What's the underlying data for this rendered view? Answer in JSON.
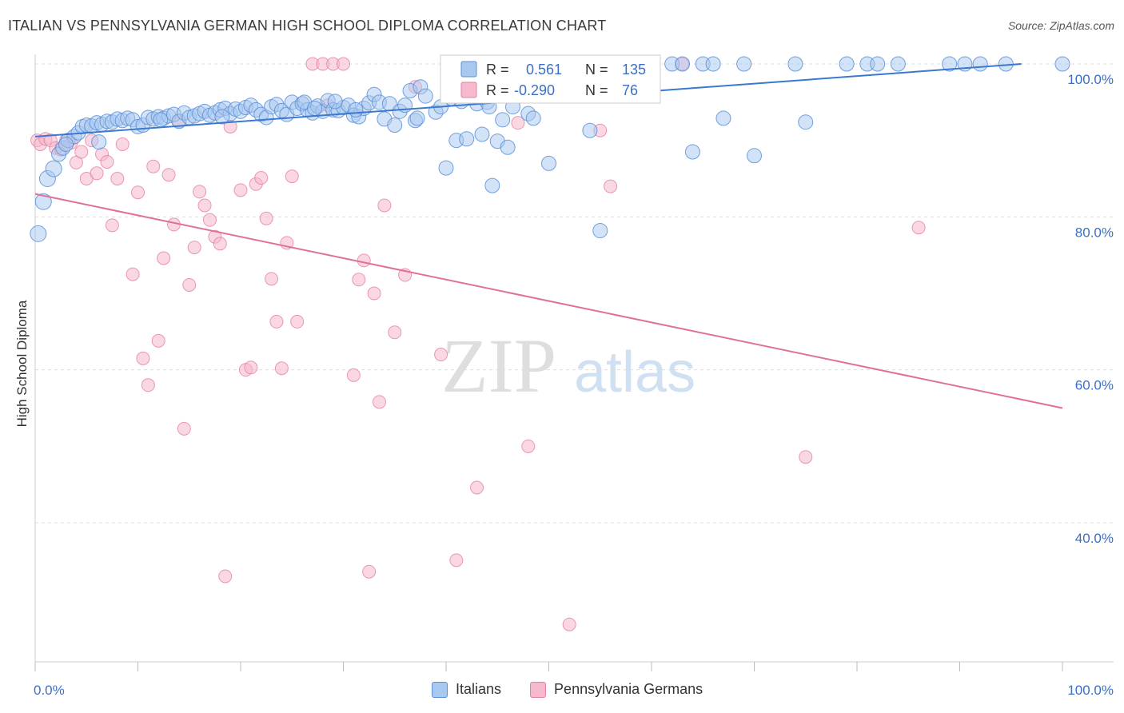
{
  "title": "ITALIAN VS PENNSYLVANIA GERMAN HIGH SCHOOL DIPLOMA CORRELATION CHART",
  "source": "Source: ZipAtlas.com",
  "watermark": {
    "zip": "ZIP",
    "atlas": "atlas"
  },
  "colors": {
    "italians_fill": "#a8c8f0",
    "italians_stroke": "#5b8fd8",
    "italians_line": "#3b78d0",
    "pa_fill": "#f6b8cc",
    "pa_stroke": "#e67fa3",
    "pa_line": "#e0709a",
    "grid": "#dddddd",
    "tick_label": "#3b6fc6"
  },
  "legend": {
    "r_label": "R =",
    "n_label": "N =",
    "italians_r": "0.561",
    "italians_n": "135",
    "pa_r": "-0.290",
    "pa_n": "76"
  },
  "bottom_legend": {
    "italians": "Italians",
    "pa": "Pennsylvania Germans"
  },
  "chart_data": {
    "type": "scatter",
    "title": "ITALIAN VS PENNSYLVANIA GERMAN HIGH SCHOOL DIPLOMA CORRELATION CHART",
    "xlabel": "",
    "ylabel": "High School Diploma",
    "x_tick_labels": [
      "0.0%",
      "100.0%"
    ],
    "y_tick_labels": [
      "40.0%",
      "60.0%",
      "80.0%",
      "100.0%"
    ],
    "xlim": [
      0,
      100
    ],
    "ylim": [
      20,
      102
    ],
    "grid": true,
    "legend_position": "top-center",
    "series": [
      {
        "name": "Italians",
        "r": 0.561,
        "n": 135,
        "trend": {
          "x": [
            0,
            96
          ],
          "y": [
            90.5,
            100
          ]
        },
        "points": [
          [
            0.3,
            77.8
          ],
          [
            0.8,
            82
          ],
          [
            1.2,
            85
          ],
          [
            1.8,
            86.3
          ],
          [
            2.3,
            88.2
          ],
          [
            2.7,
            89
          ],
          [
            3.2,
            90
          ],
          [
            3.8,
            90.5
          ],
          [
            4.2,
            91
          ],
          [
            4.6,
            91.8
          ],
          [
            5.0,
            92.0
          ],
          [
            5.5,
            91.9
          ],
          [
            6.0,
            92.3
          ],
          [
            6.5,
            92.1
          ],
          [
            7.0,
            92.5
          ],
          [
            7.5,
            92.4
          ],
          [
            8.0,
            92.8
          ],
          [
            8.5,
            92.6
          ],
          [
            9.0,
            92.9
          ],
          [
            9.5,
            92.7
          ],
          [
            10.0,
            91.8
          ],
          [
            10.5,
            92.0
          ],
          [
            11.0,
            93.0
          ],
          [
            11.5,
            92.8
          ],
          [
            12.0,
            93.1
          ],
          [
            12.5,
            92.9
          ],
          [
            13.0,
            93.2
          ],
          [
            13.5,
            93.4
          ],
          [
            14.0,
            92.5
          ],
          [
            14.5,
            93.6
          ],
          [
            15.0,
            93.0
          ],
          [
            15.5,
            93.2
          ],
          [
            16.0,
            93.5
          ],
          [
            16.5,
            93.8
          ],
          [
            17.0,
            93.3
          ],
          [
            17.5,
            93.6
          ],
          [
            18.0,
            94.0
          ],
          [
            18.5,
            94.2
          ],
          [
            19.0,
            93.5
          ],
          [
            19.5,
            94.1
          ],
          [
            20.0,
            93.8
          ],
          [
            20.5,
            94.3
          ],
          [
            21.0,
            94.6
          ],
          [
            21.5,
            94.0
          ],
          [
            22.0,
            93.4
          ],
          [
            22.5,
            93.0
          ],
          [
            23.0,
            94.4
          ],
          [
            23.5,
            94.7
          ],
          [
            24.0,
            93.9
          ],
          [
            24.5,
            93.4
          ],
          [
            25.0,
            95.0
          ],
          [
            25.5,
            94.2
          ],
          [
            26.0,
            94.8
          ],
          [
            26.5,
            94.0
          ],
          [
            27.0,
            93.6
          ],
          [
            27.5,
            94.5
          ],
          [
            28.0,
            93.8
          ],
          [
            28.5,
            95.2
          ],
          [
            29.0,
            94.0
          ],
          [
            29.5,
            93.9
          ],
          [
            30.0,
            94.3
          ],
          [
            30.5,
            94.6
          ],
          [
            31.0,
            93.3
          ],
          [
            31.5,
            93.1
          ],
          [
            32.0,
            94.2
          ],
          [
            32.5,
            94.9
          ],
          [
            33.0,
            96.0
          ],
          [
            33.5,
            95.0
          ],
          [
            34.0,
            92.8
          ],
          [
            34.5,
            94.8
          ],
          [
            35.0,
            92.0
          ],
          [
            35.5,
            93.8
          ],
          [
            36.0,
            94.6
          ],
          [
            36.5,
            96.5
          ],
          [
            37.0,
            92.6
          ],
          [
            37.5,
            97.0
          ],
          [
            38.0,
            95.8
          ],
          [
            39.0,
            93.7
          ],
          [
            39.5,
            94.4
          ],
          [
            40.0,
            86.4
          ],
          [
            40.5,
            95.5
          ],
          [
            41.0,
            90.0
          ],
          [
            41.5,
            95.1
          ],
          [
            42.0,
            90.2
          ],
          [
            43.0,
            94.8
          ],
          [
            43.5,
            90.8
          ],
          [
            44.0,
            95.0
          ],
          [
            44.5,
            84.1
          ],
          [
            45.0,
            89.9
          ],
          [
            45.5,
            92.7
          ],
          [
            46.0,
            89.1
          ],
          [
            46.5,
            94.4
          ],
          [
            47.0,
            97.5
          ],
          [
            48.0,
            93.5
          ],
          [
            48.5,
            92.9
          ],
          [
            49.0,
            99.0
          ],
          [
            50.0,
            87.0
          ],
          [
            51.0,
            97.8
          ],
          [
            51.5,
            100
          ],
          [
            52.0,
            96.0
          ],
          [
            53.0,
            100
          ],
          [
            54.0,
            91.3
          ],
          [
            55.0,
            78.2
          ],
          [
            56.0,
            100
          ],
          [
            58.0,
            100
          ],
          [
            60.0,
            100
          ],
          [
            62.0,
            100
          ],
          [
            63.0,
            100
          ],
          [
            64.0,
            88.5
          ],
          [
            65.0,
            100
          ],
          [
            66.0,
            100
          ],
          [
            67.0,
            92.9
          ],
          [
            69.0,
            100
          ],
          [
            70.0,
            88.0
          ],
          [
            74.0,
            100
          ],
          [
            75.0,
            92.4
          ],
          [
            79.0,
            100
          ],
          [
            81.0,
            100
          ],
          [
            82.0,
            100
          ],
          [
            84.0,
            100
          ],
          [
            89.0,
            100
          ],
          [
            90.5,
            100
          ],
          [
            92.0,
            100
          ],
          [
            94.5,
            100
          ],
          [
            100,
            100
          ],
          [
            3.0,
            89.5
          ],
          [
            6.2,
            89.8
          ],
          [
            12.2,
            92.7
          ],
          [
            18.2,
            93.1
          ],
          [
            26.2,
            95.0
          ],
          [
            27.2,
            94.2
          ],
          [
            29.2,
            95.1
          ],
          [
            31.2,
            94.0
          ],
          [
            37.2,
            92.9
          ],
          [
            44.2,
            94.4
          ]
        ]
      },
      {
        "name": "Pennsylvania Germans",
        "r": -0.29,
        "n": 76,
        "trend": {
          "x": [
            0,
            100
          ],
          "y": [
            83,
            55
          ]
        },
        "points": [
          [
            0.2,
            90.0
          ],
          [
            0.5,
            89.5
          ],
          [
            1.0,
            90.2
          ],
          [
            1.5,
            90.0
          ],
          [
            2.0,
            89.0
          ],
          [
            2.5,
            88.8
          ],
          [
            3.0,
            90.0
          ],
          [
            3.5,
            89.7
          ],
          [
            4.0,
            87.1
          ],
          [
            4.5,
            88.5
          ],
          [
            5.0,
            85.0
          ],
          [
            5.5,
            90.0
          ],
          [
            6.0,
            85.7
          ],
          [
            6.5,
            88.2
          ],
          [
            7.0,
            87.2
          ],
          [
            7.5,
            78.9
          ],
          [
            8.0,
            85.0
          ],
          [
            8.5,
            89.5
          ],
          [
            9.5,
            72.5
          ],
          [
            10.0,
            83.2
          ],
          [
            10.5,
            61.5
          ],
          [
            11.0,
            58.0
          ],
          [
            11.5,
            86.6
          ],
          [
            12.0,
            63.8
          ],
          [
            12.5,
            74.6
          ],
          [
            13.0,
            85.5
          ],
          [
            13.5,
            79.0
          ],
          [
            14.0,
            92.5
          ],
          [
            14.5,
            52.3
          ],
          [
            15.0,
            71.1
          ],
          [
            15.5,
            76.0
          ],
          [
            16.0,
            83.3
          ],
          [
            16.5,
            81.5
          ],
          [
            17.0,
            79.6
          ],
          [
            17.5,
            77.4
          ],
          [
            18.0,
            76.5
          ],
          [
            18.5,
            33.0
          ],
          [
            19.0,
            91.8
          ],
          [
            20.0,
            83.5
          ],
          [
            20.5,
            60.0
          ],
          [
            21.0,
            60.3
          ],
          [
            21.5,
            84.3
          ],
          [
            22.0,
            85.1
          ],
          [
            22.5,
            79.8
          ],
          [
            23.0,
            71.9
          ],
          [
            23.5,
            66.3
          ],
          [
            24.0,
            60.2
          ],
          [
            24.5,
            76.6
          ],
          [
            25.0,
            85.3
          ],
          [
            25.5,
            66.3
          ],
          [
            27.0,
            100
          ],
          [
            28.0,
            100
          ],
          [
            29.0,
            100
          ],
          [
            30.0,
            100
          ],
          [
            31.0,
            59.3
          ],
          [
            31.5,
            71.8
          ],
          [
            32.0,
            74.3
          ],
          [
            32.5,
            33.6
          ],
          [
            33.0,
            70.0
          ],
          [
            33.5,
            55.8
          ],
          [
            34.0,
            81.5
          ],
          [
            35.0,
            64.9
          ],
          [
            36.0,
            72.4
          ],
          [
            37.0,
            97.0
          ],
          [
            39.5,
            62.0
          ],
          [
            41.0,
            35.1
          ],
          [
            43.0,
            44.6
          ],
          [
            47.0,
            92.3
          ],
          [
            48.0,
            50.0
          ],
          [
            52.0,
            26.7
          ],
          [
            55.0,
            91.3
          ],
          [
            56.0,
            84.0
          ],
          [
            63.0,
            100
          ],
          [
            75.0,
            48.6
          ],
          [
            86.0,
            78.6
          ],
          [
            28.5,
            94.6
          ]
        ]
      }
    ]
  }
}
